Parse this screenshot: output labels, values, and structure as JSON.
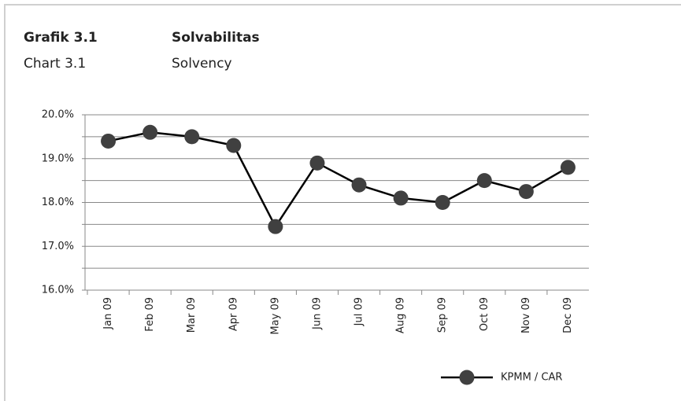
{
  "header": {
    "label": "Grafik 3.1",
    "title": "Solvabilitas",
    "label_en": "Chart 3.1",
    "title_en": "Solvency"
  },
  "chart_data": {
    "type": "line",
    "categories": [
      "Jan 09",
      "Feb 09",
      "Mar 09",
      "Apr 09",
      "May 09",
      "Jun 09",
      "Jul 09",
      "Aug 09",
      "Sep 09",
      "Oct 09",
      "Nov 09",
      "Dec 09"
    ],
    "series": [
      {
        "name": "KPMM / CAR",
        "color": "#000000",
        "marker_color": "#404040",
        "values": [
          19.4,
          19.6,
          19.5,
          19.3,
          17.45,
          18.9,
          18.4,
          18.1,
          18.0,
          18.5,
          18.25,
          18.8
        ]
      }
    ],
    "ylim": [
      16,
      20
    ],
    "yticks": [
      {
        "value": 16,
        "label": "16.0%"
      },
      {
        "value": 17,
        "label": "17.0%"
      },
      {
        "value": 18,
        "label": "18.0%"
      },
      {
        "value": 19,
        "label": "19.0%"
      },
      {
        "value": 20,
        "label": "20.0%"
      }
    ],
    "minor_yticks": [
      16.5,
      17.5,
      18.5,
      19.5
    ],
    "grid": true,
    "legend": "bottom-right"
  }
}
